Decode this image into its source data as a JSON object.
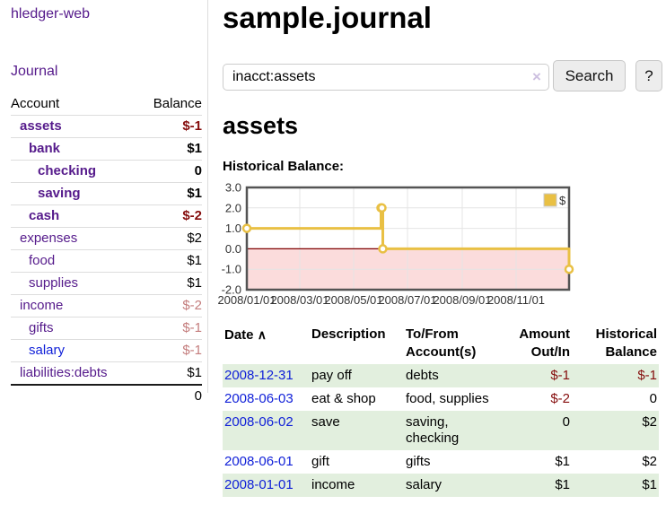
{
  "app": {
    "brand": "hledger-web",
    "journal_link": "Journal"
  },
  "sidebar": {
    "headers": {
      "account": "Account",
      "balance": "Balance"
    },
    "accounts": [
      {
        "name": "assets",
        "level": 1,
        "bold": true,
        "balance": "$-1",
        "balance_tone": "negative-strong",
        "name_color": "purple"
      },
      {
        "name": "bank",
        "level": 2,
        "bold": true,
        "balance": "$1",
        "balance_tone": "normal",
        "name_color": "purple"
      },
      {
        "name": "checking",
        "level": 3,
        "bold": true,
        "balance": "0",
        "balance_tone": "normal",
        "name_color": "purple"
      },
      {
        "name": "saving",
        "level": 3,
        "bold": true,
        "balance": "$1",
        "balance_tone": "normal",
        "name_color": "purple"
      },
      {
        "name": "cash",
        "level": 2,
        "bold": true,
        "balance": "$-2",
        "balance_tone": "negative-strong",
        "name_color": "purple"
      },
      {
        "name": "expenses",
        "level": 1,
        "bold": false,
        "balance": "$2",
        "balance_tone": "normal",
        "name_color": "purple"
      },
      {
        "name": "food",
        "level": 2,
        "bold": false,
        "balance": "$1",
        "balance_tone": "normal",
        "name_color": "purple"
      },
      {
        "name": "supplies",
        "level": 2,
        "bold": false,
        "balance": "$1",
        "balance_tone": "normal",
        "name_color": "purple"
      },
      {
        "name": "income",
        "level": 1,
        "bold": false,
        "balance": "$-2",
        "balance_tone": "negative-soft",
        "name_color": "purple"
      },
      {
        "name": "gifts",
        "level": 2,
        "bold": false,
        "balance": "$-1",
        "balance_tone": "negative-soft",
        "name_color": "purple"
      },
      {
        "name": "salary",
        "level": 2,
        "bold": false,
        "balance": "$-1",
        "balance_tone": "negative-soft",
        "name_color": "blue"
      },
      {
        "name": "liabilities:debts",
        "level": 1,
        "bold": false,
        "balance": "$1",
        "balance_tone": "normal",
        "name_color": "purple"
      }
    ],
    "total": "0"
  },
  "header": {
    "title": "sample.journal"
  },
  "search": {
    "value": "inacct:assets",
    "clear_icon": "×",
    "search_button": "Search",
    "help_button": "?"
  },
  "account_page": {
    "title": "assets",
    "section_label": "Historical Balance:"
  },
  "chart_data": {
    "type": "line",
    "steps": true,
    "title": "Historical Balance:",
    "series": [
      {
        "name": "$",
        "color": "#e9c044",
        "points": [
          [
            "2008-01-01",
            1
          ],
          [
            "2008-06-01",
            2
          ],
          [
            "2008-06-02",
            2
          ],
          [
            "2008-06-03",
            0
          ],
          [
            "2008-12-31",
            -1
          ]
        ]
      }
    ],
    "x_range": [
      "2008-01-01",
      "2008-12-31"
    ],
    "ylim": [
      -2,
      3
    ],
    "y_ticks": [
      "3.0",
      "2.0",
      "1.0",
      "0.0",
      "-1.0",
      "-2.0"
    ],
    "x_ticks": [
      "2008/01/01",
      "2008/03/01",
      "2008/05/01",
      "2008/07/01",
      "2008/09/01",
      "2008/11/01"
    ],
    "grid": true,
    "legend_position": "top-right",
    "colors": {
      "negative_region": "#fbdcdc",
      "zero_line": "#800000",
      "grid": "#e4e4e4",
      "border": "#545454"
    }
  },
  "register": {
    "headers": [
      "Date",
      "Description",
      "To/From Account(s)",
      "Amount Out/In",
      "Historical Balance"
    ],
    "sort_icon": "∧",
    "rows": [
      {
        "date": "2008-12-31",
        "description": "pay off",
        "accounts": "debts",
        "amount": "$-1",
        "balance": "$-1",
        "amount_negative": true,
        "balance_negative": true,
        "highlighted": true
      },
      {
        "date": "2008-06-03",
        "description": "eat & shop",
        "accounts": "food, supplies",
        "amount": "$-2",
        "balance": "0",
        "amount_negative": true,
        "balance_negative": false,
        "highlighted": false
      },
      {
        "date": "2008-06-02",
        "description": "save",
        "accounts": "saving, checking",
        "amount": "0",
        "balance": "$2",
        "amount_negative": false,
        "balance_negative": false,
        "highlighted": true
      },
      {
        "date": "2008-06-01",
        "description": "gift",
        "accounts": "gifts",
        "amount": "$1",
        "balance": "$2",
        "amount_negative": false,
        "balance_negative": false,
        "highlighted": false
      },
      {
        "date": "2008-01-01",
        "description": "income",
        "accounts": "salary",
        "amount": "$1",
        "balance": "$1",
        "amount_negative": false,
        "balance_negative": false,
        "highlighted": true
      }
    ]
  }
}
